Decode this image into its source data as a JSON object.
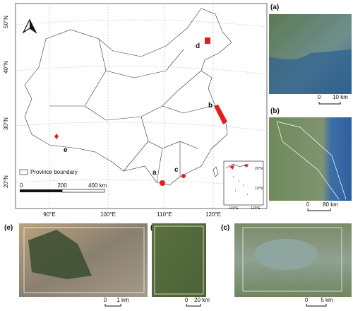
{
  "main_map": {
    "lat_labels": [
      "50°N",
      "40°N",
      "30°N",
      "20°N"
    ],
    "lon_labels": [
      "90°E",
      "100°E",
      "110°E",
      "120°E"
    ],
    "sites": [
      "a",
      "b",
      "c",
      "d",
      "e"
    ],
    "legend": "Province boundary",
    "scale": [
      "0",
      "200",
      "400 km"
    ],
    "inset": {
      "lat_labels": [
        "20°N",
        "10°N"
      ],
      "lon_labels": [
        "110°E",
        "120°E"
      ]
    }
  },
  "panels": [
    {
      "label": "(a)",
      "scale": [
        "0",
        "10 km"
      ]
    },
    {
      "label": "(b)",
      "scale": [
        "0",
        "80 km"
      ]
    },
    {
      "label": "(c)",
      "scale": [
        "0",
        "5 km"
      ]
    },
    {
      "label": "(d)",
      "scale": [
        "0",
        "20 km"
      ]
    },
    {
      "label": "(e)",
      "scale": [
        "0",
        "1 km"
      ]
    }
  ]
}
